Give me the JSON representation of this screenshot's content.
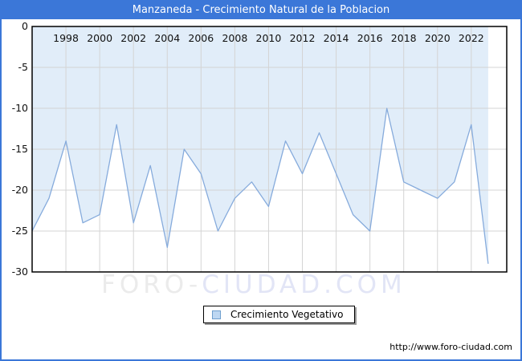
{
  "title_bar": {
    "text": "Manzaneda - Crecimiento Natural de la Poblacion"
  },
  "colors": {
    "frame_blue": "#3b77d8",
    "plot_border": "#000000",
    "grid": "#d4d4d4",
    "line": "#86abdc",
    "fill": "#e1edf9",
    "tick_label": "#111111",
    "watermark_gray": "#ebebeb",
    "watermark_blue": "#e2e5f6",
    "legend_swatch_fill": "#bdd7f2",
    "legend_swatch_border": "#6f9fce"
  },
  "chart_data": {
    "type": "area",
    "title": "Manzaneda - Crecimiento Natural de la Poblacion",
    "x": [
      1996,
      1997,
      1998,
      1999,
      2000,
      2001,
      2002,
      2003,
      2004,
      2005,
      2006,
      2007,
      2008,
      2009,
      2010,
      2011,
      2012,
      2013,
      2014,
      2015,
      2016,
      2017,
      2018,
      2019,
      2020,
      2021,
      2022,
      2023
    ],
    "series": [
      {
        "name": "Crecimiento Vegetativo",
        "values": [
          -25,
          -21,
          -14,
          -24,
          -23,
          -12,
          -24,
          -17,
          -27,
          -15,
          -18,
          -25,
          -21,
          -19,
          -22,
          -14,
          -18,
          -13,
          -18,
          -23,
          -25,
          -10,
          -19,
          -20,
          -21,
          -19,
          -12,
          -29
        ]
      }
    ],
    "xlim": [
      1996,
      2024.1
    ],
    "ylim": [
      -30,
      0
    ],
    "xticks": [
      1998,
      2000,
      2002,
      2004,
      2006,
      2008,
      2010,
      2012,
      2014,
      2016,
      2018,
      2020,
      2022
    ],
    "yticks": [
      0,
      -5,
      -10,
      -15,
      -20,
      -25,
      -30
    ],
    "grid": true,
    "legend_position": "bottom-center",
    "xlabel": "",
    "ylabel": ""
  },
  "legend": {
    "label": "Crecimiento Vegetativo"
  },
  "watermark": {
    "part1": "FORO-",
    "part2": "CIUDAD.COM"
  },
  "footer": {
    "url": "http://www.foro-ciudad.com"
  }
}
